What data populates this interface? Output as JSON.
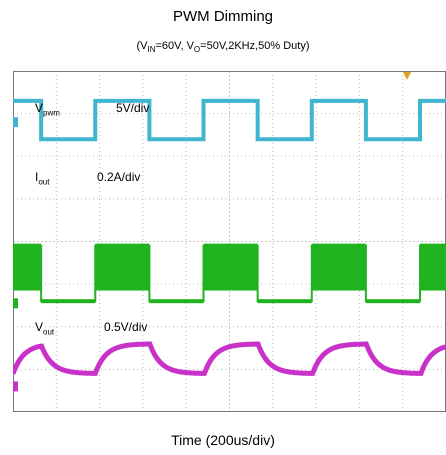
{
  "title": "PWM Dimming",
  "subtitle": {
    "vin_prefix": "(V",
    "vin_sub": "IN",
    "vin_value": "=60V, V",
    "vo_sub": "O",
    "rest": "=50V,2KHz,50% Duty)"
  },
  "xlabel": "Time (200us/div)",
  "channels": [
    {
      "name": "V",
      "sub": "pwm",
      "scale": "5V/div",
      "color": "#3fb6cf"
    },
    {
      "name": "I",
      "sub": "out",
      "scale": "0.2A/div",
      "color": "#1fb41f"
    },
    {
      "name": "V",
      "sub": "out",
      "scale": "0.5V/div",
      "color": "#c832c8"
    }
  ],
  "chart_data": {
    "type": "line",
    "title": "PWM Dimming",
    "subtitle": "(VIN=60V, VO=50V,2KHz,50% Duty)",
    "xlabel": "Time (200us/div)",
    "ylabel": "",
    "grid": true,
    "x_divisions": 10,
    "y_divisions": 8,
    "pwm_frequency_khz": 2,
    "duty_cycle_percent": 50,
    "period_divisions": 2.5,
    "first_rising_edge_division": -0.6,
    "series": [
      {
        "name": "Vpwm",
        "scale": "5V/div",
        "high_div": 7.3,
        "low_div": 6.4
      },
      {
        "name": "Iout",
        "scale": "0.2A/div",
        "high_div": 3.9,
        "low_div": 2.6,
        "chopped_on_high": true
      },
      {
        "name": "Vout",
        "scale": "0.5V/div",
        "high_div": 1.6,
        "low_div": 0.9
      }
    ]
  }
}
